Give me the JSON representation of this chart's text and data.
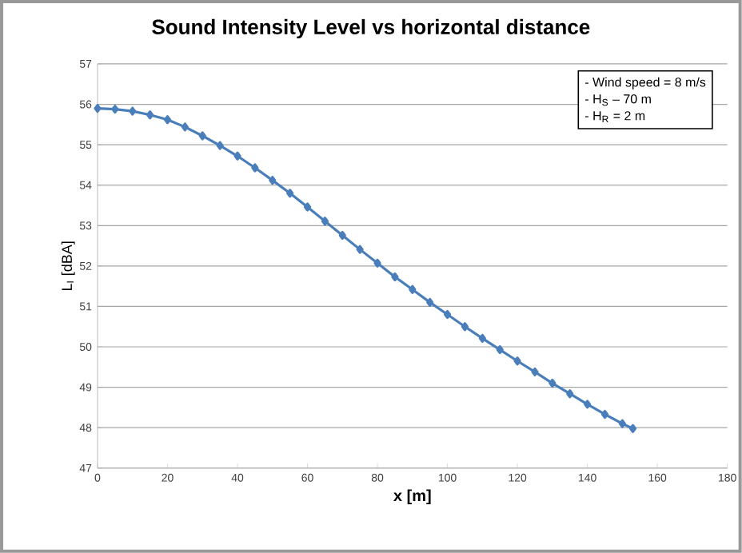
{
  "chart_data": {
    "type": "line",
    "title": "Sound Intensity Level vs horizontal distance",
    "xlabel": "x  [m]",
    "ylabel": "L$_{I}$ [dBA]",
    "annotations": [
      "- Wind speed = 8 m/s",
      "- H$_{S}$ – 70 m",
      "- H$_{R}$ = 2 m"
    ],
    "xlim": [
      0,
      180
    ],
    "xticks": [
      0,
      20,
      40,
      60,
      80,
      100,
      120,
      140,
      160,
      180
    ],
    "ylim": [
      47,
      57
    ],
    "yticks": [
      47,
      48,
      49,
      50,
      51,
      52,
      53,
      54,
      55,
      56,
      57
    ],
    "grid": "y",
    "marker": "diamond",
    "line_style": "solid",
    "series": [
      {
        "color": "#4a7ebb",
        "x": [
          0,
          5,
          10,
          15,
          20,
          25,
          30,
          35,
          40,
          45,
          50,
          55,
          60,
          65,
          70,
          75,
          80,
          85,
          90,
          95,
          100,
          105,
          110,
          115,
          120,
          125,
          130,
          135,
          140,
          145,
          150,
          153
        ],
        "values": [
          55.9,
          55.88,
          55.83,
          55.74,
          55.62,
          55.44,
          55.22,
          54.98,
          54.72,
          54.43,
          54.12,
          53.8,
          53.46,
          53.11,
          52.76,
          52.41,
          52.07,
          51.73,
          51.42,
          51.1,
          50.8,
          50.5,
          50.21,
          49.93,
          49.65,
          49.38,
          49.1,
          48.84,
          48.58,
          48.33,
          48.1,
          47.98
        ]
      }
    ]
  }
}
